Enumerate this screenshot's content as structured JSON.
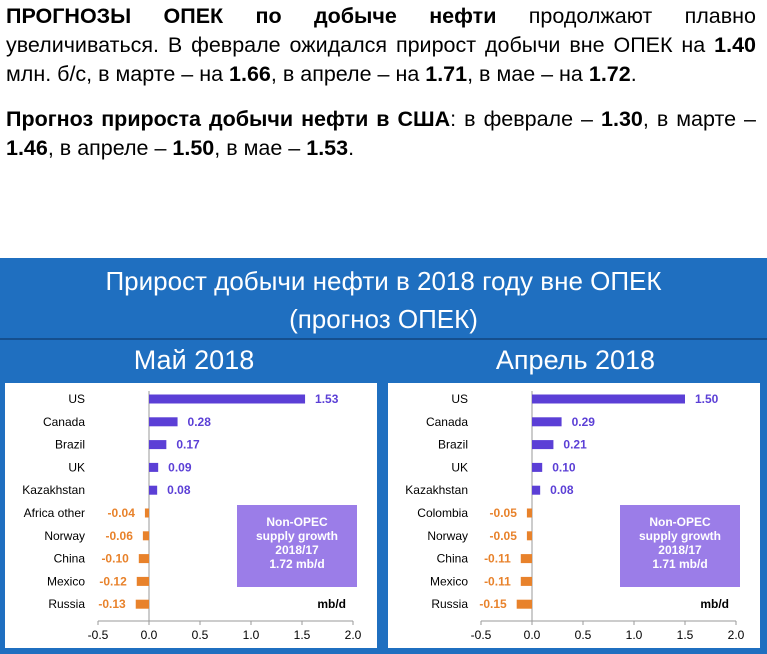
{
  "intro": {
    "p1_bold": "ПРОГНОЗЫ ОПЕК по добыче нефти",
    "p1_a": " продолжают плавно увеличиваться.  В феврале ожидался прирост добычи вне ОПЕК на ",
    "p1_v1": "1.40",
    "p1_b": " млн. б/с, в марте – на ",
    "p1_v2": "1.66",
    "p1_c": ", в апреле – на ",
    "p1_v3": "1.71",
    "p1_d": ", в мае – на ",
    "p1_v4": "1.72",
    "p1_e": ".",
    "p2_bold": "Прогноз прироста добычи нефти в США",
    "p2_a": ": в феврале –  ",
    "p2_v1": "1.30",
    "p2_b": ", в марте – ",
    "p2_v2": "1.46",
    "p2_c": ", в апреле – ",
    "p2_v3": "1.50",
    "p2_d": ", в мае – ",
    "p2_v4": "1.53",
    "p2_e": "."
  },
  "panel": {
    "title_line1": "Прирост добычи нефти в 2018 году вне ОПЕК",
    "title_line2": "(прогноз ОПЕК)",
    "left_title": "Май 2018",
    "right_title": "Апрель 2018"
  },
  "colors": {
    "positive": "#5b3fd6",
    "negative": "#e8822b",
    "box": "#9b7de8",
    "panel": "#1f6fc0"
  },
  "chart_data": [
    {
      "type": "bar",
      "orientation": "horizontal",
      "categories": [
        "US",
        "Canada",
        "Brazil",
        "UK",
        "Kazakhstan",
        "Africa other",
        "Norway",
        "China",
        "Mexico",
        "Russia"
      ],
      "values": [
        1.53,
        0.28,
        0.17,
        0.09,
        0.08,
        -0.04,
        -0.06,
        -0.1,
        -0.12,
        -0.13
      ],
      "value_labels": [
        "1.53",
        "0.28",
        "0.17",
        "0.09",
        "0.08",
        "-0.04",
        "-0.06",
        "-0.10",
        "-0.12",
        "-0.13"
      ],
      "xlim": [
        -0.5,
        2.0
      ],
      "xticks": [
        "-0.5",
        "0.0",
        "0.5",
        "1.0",
        "1.5",
        "2.0"
      ],
      "xlabel": "mb/d",
      "annotation": [
        "Non-OPEC",
        "supply growth",
        "2018/17",
        "1.72 mb/d"
      ]
    },
    {
      "type": "bar",
      "orientation": "horizontal",
      "categories": [
        "US",
        "Canada",
        "Brazil",
        "UK",
        "Kazakhstan",
        "Colombia",
        "Norway",
        "China",
        "Mexico",
        "Russia"
      ],
      "values": [
        1.5,
        0.29,
        0.21,
        0.1,
        0.08,
        -0.05,
        -0.05,
        -0.11,
        -0.11,
        -0.15
      ],
      "value_labels": [
        "1.50",
        "0.29",
        "0.21",
        "0.10",
        "0.08",
        "-0.05",
        "-0.05",
        "-0.11",
        "-0.11",
        "-0.15"
      ],
      "xlim": [
        -0.5,
        2.0
      ],
      "xticks": [
        "-0.5",
        "0.0",
        "0.5",
        "1.0",
        "1.5",
        "2.0"
      ],
      "xlabel": "mb/d",
      "annotation": [
        "Non-OPEC",
        "supply growth",
        "2018/17",
        "1.71 mb/d"
      ]
    }
  ]
}
